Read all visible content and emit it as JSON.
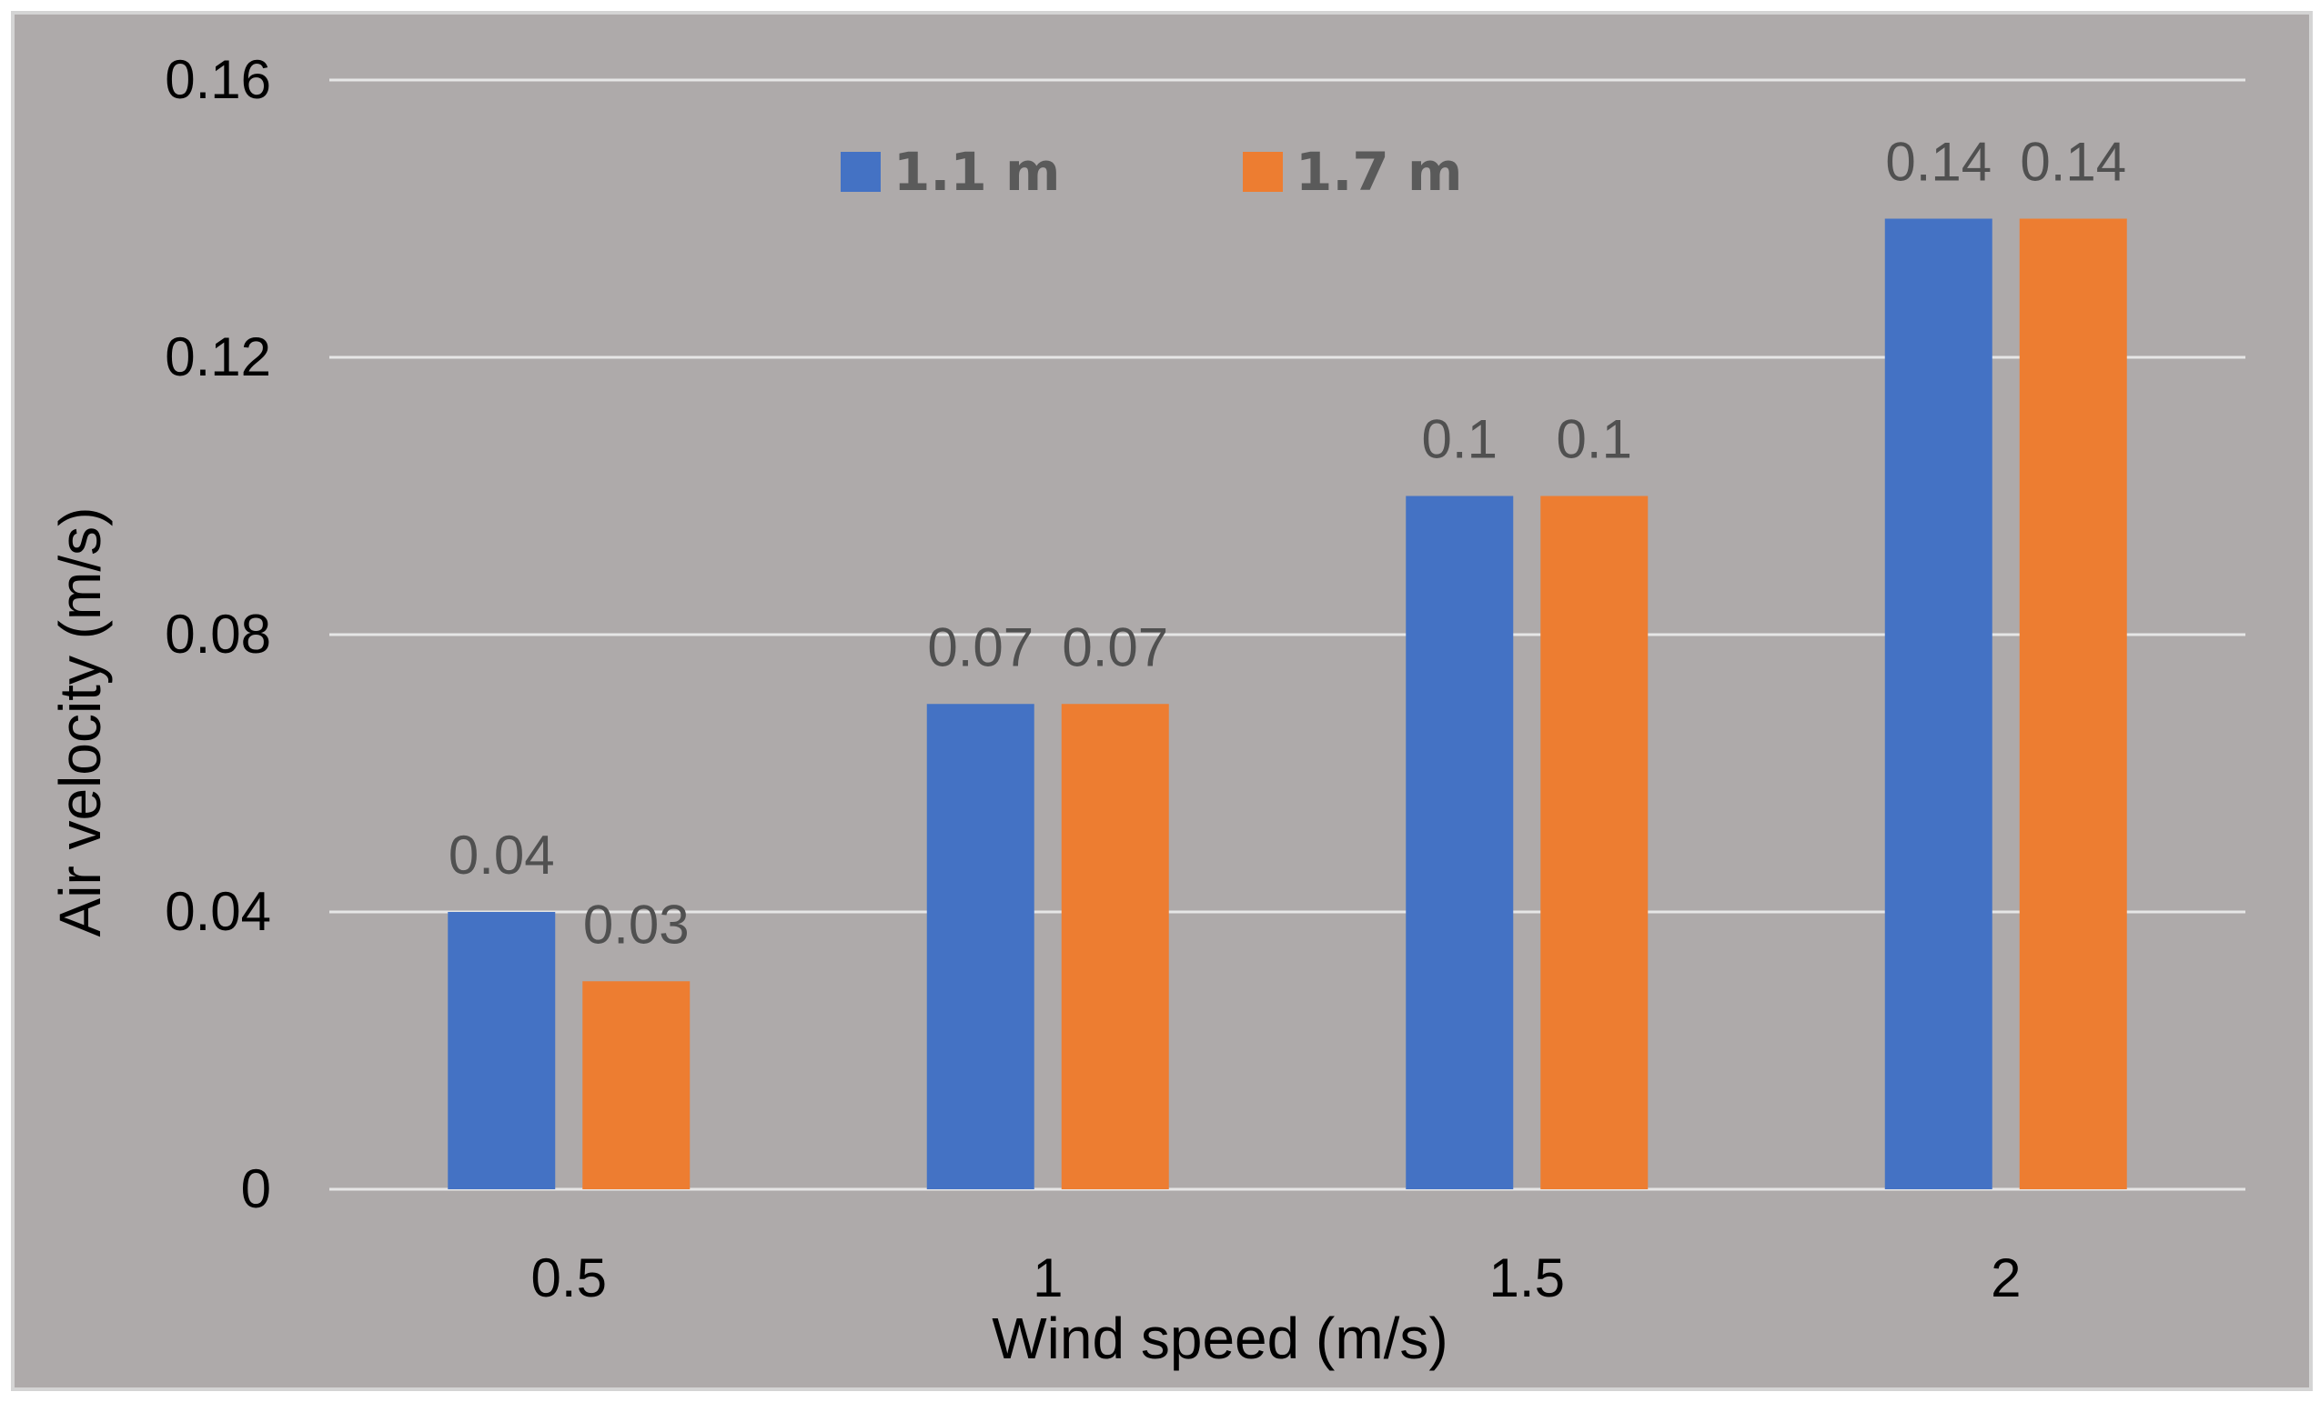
{
  "colors": {
    "plot_background": "#aeaaaa",
    "gridline": "#e6e6e6",
    "series_1": "#4472c4",
    "series_2": "#ed7d31",
    "axis_text": "#000000",
    "data_label_text": "#505050",
    "legend_text": "#5a5a5a"
  },
  "chart_data": {
    "type": "bar",
    "title": "",
    "xlabel": "Wind speed (m/s)",
    "ylabel": "Air velocity (m/s)",
    "categories": [
      "0.5",
      "1",
      "1.5",
      "2"
    ],
    "series": [
      {
        "name": "1.1 m",
        "values": [
          0.04,
          0.07,
          0.1,
          0.14
        ],
        "labels": [
          "0.04",
          "0.07",
          "0.1",
          "0.14"
        ]
      },
      {
        "name": "1.7 m",
        "values": [
          0.03,
          0.07,
          0.1,
          0.14
        ],
        "labels": [
          "0.03",
          "0.07",
          "0.1",
          "0.14"
        ]
      }
    ],
    "ylim": [
      0,
      0.16
    ],
    "yticks": [
      0,
      0.04,
      0.08,
      0.12,
      0.16
    ],
    "ytick_labels": [
      "0",
      "0.04",
      "0.08",
      "0.12",
      "0.16"
    ],
    "grid": true,
    "legend_position": "top-center"
  }
}
